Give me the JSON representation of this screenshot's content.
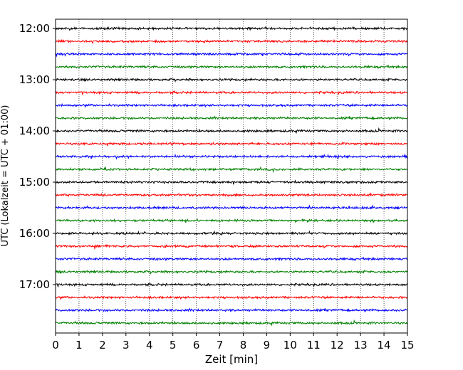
{
  "chart_data": {
    "type": "line",
    "xlabel": "Zeit  [min]",
    "ylabel": "UTC (Lokalzeit = UTC + 01:00)",
    "xlim": [
      0,
      15
    ],
    "x_ticks": [
      "0",
      "1",
      "2",
      "3",
      "4",
      "5",
      "6",
      "7",
      "8",
      "9",
      "10",
      "11",
      "12",
      "13",
      "14",
      "15"
    ],
    "y_ticks": [
      "12:00",
      "13:00",
      "14:00",
      "15:00",
      "16:00",
      "17:00"
    ],
    "trace_start": "12:00",
    "trace_interval_minutes": 15,
    "trace_count": 24,
    "trace_colors": [
      "#000000",
      "#ff0000",
      "#0000ff",
      "#008000"
    ],
    "grid": "vertical dotted at each minute"
  }
}
